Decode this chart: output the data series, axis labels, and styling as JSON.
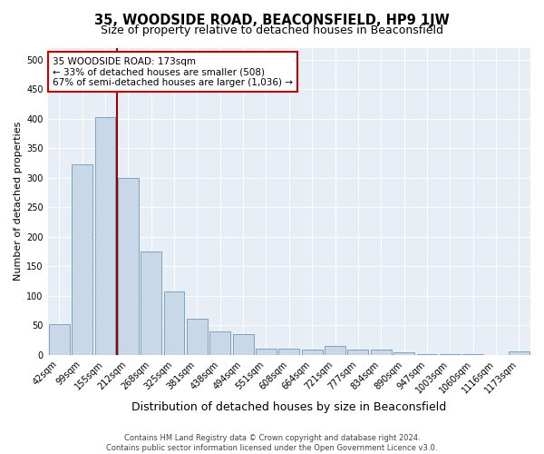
{
  "title": "35, WOODSIDE ROAD, BEACONSFIELD, HP9 1JW",
  "subtitle": "Size of property relative to detached houses in Beaconsfield",
  "xlabel": "Distribution of detached houses by size in Beaconsfield",
  "ylabel": "Number of detached properties",
  "categories": [
    "42sqm",
    "99sqm",
    "155sqm",
    "212sqm",
    "268sqm",
    "325sqm",
    "381sqm",
    "438sqm",
    "494sqm",
    "551sqm",
    "608sqm",
    "664sqm",
    "721sqm",
    "777sqm",
    "834sqm",
    "890sqm",
    "947sqm",
    "1003sqm",
    "1060sqm",
    "1116sqm",
    "1173sqm"
  ],
  "values": [
    53,
    322,
    403,
    299,
    175,
    107,
    62,
    40,
    36,
    11,
    11,
    9,
    15,
    9,
    9,
    4,
    2,
    1,
    1,
    0,
    6
  ],
  "bar_color": "#c8d8e8",
  "bar_edge_color": "#6a9ab8",
  "vline_x": 2.5,
  "vline_color": "#990000",
  "annotation_text": "35 WOODSIDE ROAD: 173sqm\n← 33% of detached houses are smaller (508)\n67% of semi-detached houses are larger (1,036) →",
  "annotation_box_facecolor": "#ffffff",
  "annotation_box_edgecolor": "#cc0000",
  "ylim": [
    0,
    520
  ],
  "yticks": [
    0,
    50,
    100,
    150,
    200,
    250,
    300,
    350,
    400,
    450,
    500
  ],
  "footer_line1": "Contains HM Land Registry data © Crown copyright and database right 2024.",
  "footer_line2": "Contains public sector information licensed under the Open Government Licence v3.0.",
  "bg_color": "#ffffff",
  "plot_bg_color": "#e8eef5",
  "grid_color": "#ffffff",
  "title_fontsize": 10.5,
  "subtitle_fontsize": 9,
  "ylabel_fontsize": 8,
  "xlabel_fontsize": 9,
  "footer_fontsize": 6,
  "tick_fontsize": 7,
  "annot_fontsize": 7.5
}
